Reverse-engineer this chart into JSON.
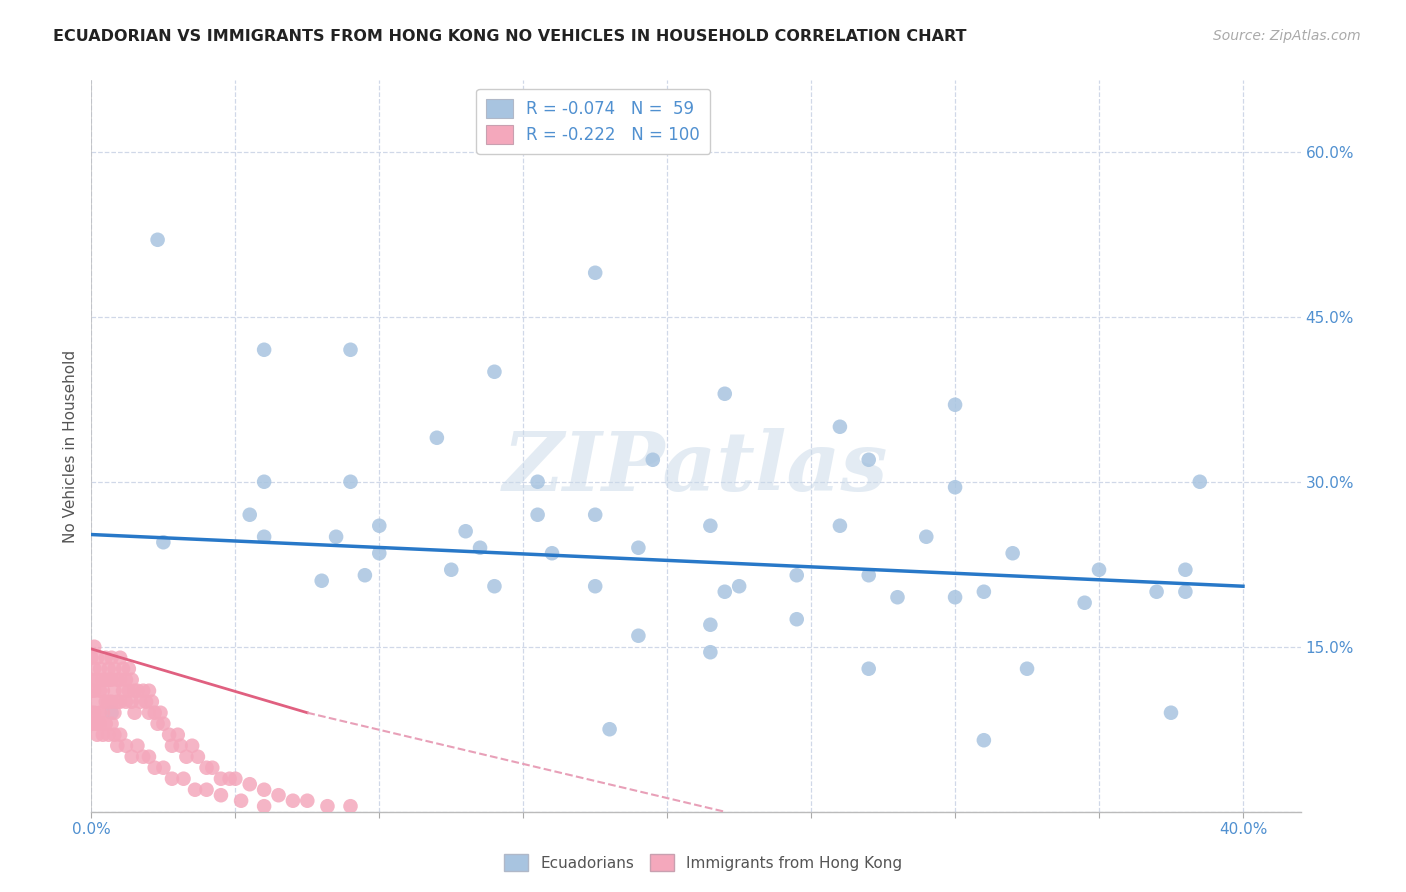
{
  "title": "ECUADORIAN VS IMMIGRANTS FROM HONG KONG NO VEHICLES IN HOUSEHOLD CORRELATION CHART",
  "source": "Source: ZipAtlas.com",
  "ylabel": "No Vehicles in Household",
  "xlim": [
    0.0,
    0.42
  ],
  "ylim": [
    0.0,
    0.665
  ],
  "yticks": [
    0.0,
    0.15,
    0.3,
    0.45,
    0.6
  ],
  "xticks": [
    0.0,
    0.05,
    0.1,
    0.15,
    0.2,
    0.25,
    0.3,
    0.35,
    0.4
  ],
  "blue_R": -0.074,
  "blue_N": 59,
  "pink_R": -0.222,
  "pink_N": 100,
  "blue_color": "#a8c4e0",
  "pink_color": "#f4a8bc",
  "blue_line_color": "#2878c8",
  "pink_line_color": "#e06080",
  "pink_line_dash_color": "#e8a0b8",
  "watermark": "ZIPatlas",
  "title_fontsize": 11.5,
  "tick_fontsize": 11,
  "label_fontsize": 11,
  "background": "#ffffff",
  "grid_color": "#d0d8e8",
  "tick_color": "#5090d0",
  "blue_scatter_x": [
    0.023,
    0.007,
    0.175,
    0.3,
    0.06,
    0.09,
    0.14,
    0.22,
    0.26,
    0.27,
    0.06,
    0.09,
    0.12,
    0.155,
    0.175,
    0.3,
    0.385,
    0.055,
    0.085,
    0.1,
    0.13,
    0.155,
    0.195,
    0.26,
    0.29,
    0.32,
    0.35,
    0.025,
    0.06,
    0.08,
    0.095,
    0.1,
    0.125,
    0.135,
    0.16,
    0.19,
    0.215,
    0.14,
    0.175,
    0.225,
    0.245,
    0.27,
    0.3,
    0.345,
    0.37,
    0.38,
    0.22,
    0.28,
    0.31,
    0.245,
    0.215,
    0.19,
    0.38,
    0.215,
    0.27,
    0.325,
    0.375,
    0.31,
    0.18
  ],
  "blue_scatter_y": [
    0.52,
    0.09,
    0.49,
    0.37,
    0.42,
    0.42,
    0.4,
    0.38,
    0.35,
    0.32,
    0.3,
    0.3,
    0.34,
    0.3,
    0.27,
    0.295,
    0.3,
    0.27,
    0.25,
    0.26,
    0.255,
    0.27,
    0.32,
    0.26,
    0.25,
    0.235,
    0.22,
    0.245,
    0.25,
    0.21,
    0.215,
    0.235,
    0.22,
    0.24,
    0.235,
    0.24,
    0.26,
    0.205,
    0.205,
    0.205,
    0.215,
    0.215,
    0.195,
    0.19,
    0.2,
    0.2,
    0.2,
    0.195,
    0.2,
    0.175,
    0.17,
    0.16,
    0.22,
    0.145,
    0.13,
    0.13,
    0.09,
    0.065,
    0.075
  ],
  "pink_scatter_x": [
    0.0,
    0.0,
    0.0,
    0.0,
    0.0,
    0.001,
    0.001,
    0.001,
    0.001,
    0.002,
    0.002,
    0.002,
    0.002,
    0.003,
    0.003,
    0.003,
    0.004,
    0.004,
    0.004,
    0.005,
    0.005,
    0.005,
    0.006,
    0.006,
    0.006,
    0.007,
    0.007,
    0.007,
    0.008,
    0.008,
    0.008,
    0.009,
    0.009,
    0.01,
    0.01,
    0.01,
    0.011,
    0.011,
    0.012,
    0.012,
    0.013,
    0.013,
    0.014,
    0.014,
    0.015,
    0.015,
    0.016,
    0.017,
    0.018,
    0.019,
    0.02,
    0.02,
    0.021,
    0.022,
    0.023,
    0.024,
    0.025,
    0.027,
    0.028,
    0.03,
    0.031,
    0.033,
    0.035,
    0.037,
    0.04,
    0.042,
    0.045,
    0.048,
    0.05,
    0.055,
    0.06,
    0.065,
    0.07,
    0.075,
    0.082,
    0.09,
    0.001,
    0.002,
    0.003,
    0.004,
    0.005,
    0.006,
    0.007,
    0.008,
    0.009,
    0.01,
    0.012,
    0.014,
    0.016,
    0.018,
    0.02,
    0.022,
    0.025,
    0.028,
    0.032,
    0.036,
    0.04,
    0.045,
    0.052,
    0.06
  ],
  "pink_scatter_y": [
    0.14,
    0.12,
    0.11,
    0.09,
    0.08,
    0.15,
    0.13,
    0.11,
    0.09,
    0.14,
    0.12,
    0.1,
    0.08,
    0.13,
    0.11,
    0.09,
    0.12,
    0.11,
    0.09,
    0.14,
    0.12,
    0.1,
    0.13,
    0.12,
    0.1,
    0.14,
    0.12,
    0.1,
    0.13,
    0.11,
    0.09,
    0.12,
    0.1,
    0.14,
    0.12,
    0.1,
    0.13,
    0.11,
    0.12,
    0.1,
    0.13,
    0.11,
    0.12,
    0.1,
    0.11,
    0.09,
    0.11,
    0.1,
    0.11,
    0.1,
    0.11,
    0.09,
    0.1,
    0.09,
    0.08,
    0.09,
    0.08,
    0.07,
    0.06,
    0.07,
    0.06,
    0.05,
    0.06,
    0.05,
    0.04,
    0.04,
    0.03,
    0.03,
    0.03,
    0.025,
    0.02,
    0.015,
    0.01,
    0.01,
    0.005,
    0.005,
    0.08,
    0.07,
    0.08,
    0.07,
    0.08,
    0.07,
    0.08,
    0.07,
    0.06,
    0.07,
    0.06,
    0.05,
    0.06,
    0.05,
    0.05,
    0.04,
    0.04,
    0.03,
    0.03,
    0.02,
    0.02,
    0.015,
    0.01,
    0.005
  ],
  "blue_line_x0": 0.0,
  "blue_line_y0": 0.252,
  "blue_line_x1": 0.4,
  "blue_line_y1": 0.205,
  "pink_line_x0": 0.0,
  "pink_line_y0": 0.148,
  "pink_line_x1_solid": 0.075,
  "pink_line_y1_solid": 0.09,
  "pink_line_x1_dash": 0.22,
  "pink_line_y1_dash": 0.0
}
